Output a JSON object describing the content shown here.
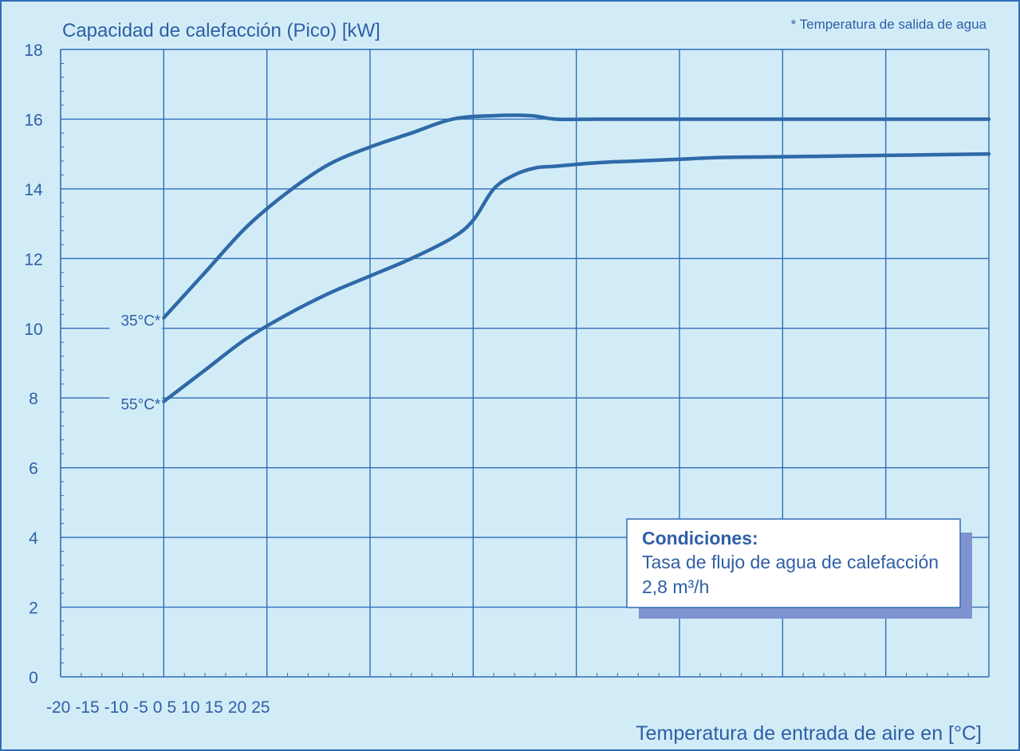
{
  "chart_data": {
    "type": "line",
    "ylabel": "Capacidad de calefacción (Pico) [kW]",
    "xlabel": "Temperatura de entrada de aire en [°C]",
    "note": "* Temperatura de salida de agua",
    "ylim": [
      0,
      18
    ],
    "xlim": [
      -20,
      25
    ],
    "y_ticks": [
      0,
      2,
      4,
      6,
      8,
      10,
      12,
      14,
      16,
      18
    ],
    "x_ticks": [
      -20,
      -15,
      -10,
      -5,
      0,
      5,
      10,
      15,
      20,
      25
    ],
    "x_tick_labels": [
      "-20",
      "-15",
      "-10",
      "-5",
      "0",
      "5",
      "10",
      "15",
      "20",
      "25"
    ],
    "grid": true,
    "series": [
      {
        "name": "35°C*",
        "x": [
          -15,
          -13,
          -11,
          -9,
          -7,
          -5,
          -3,
          -1,
          1,
          2.8,
          4,
          6,
          8,
          10,
          12,
          15,
          20,
          25
        ],
        "y": [
          10.3,
          11.6,
          12.9,
          13.9,
          14.7,
          15.2,
          15.6,
          16.0,
          16.1,
          16.1,
          16.0,
          16.0,
          16.0,
          16.0,
          16.0,
          16.0,
          16.0,
          16.0
        ]
      },
      {
        "name": "55°C*",
        "x": [
          -15,
          -13,
          -11,
          -9,
          -7,
          -5,
          -3,
          -1,
          0,
          1,
          2,
          3,
          4,
          6,
          8,
          10,
          12,
          15,
          20,
          25
        ],
        "y": [
          7.9,
          8.8,
          9.7,
          10.4,
          11.0,
          11.5,
          12.0,
          12.6,
          13.1,
          14.0,
          14.4,
          14.6,
          14.65,
          14.75,
          14.8,
          14.85,
          14.9,
          14.92,
          14.96,
          15.0
        ]
      }
    ],
    "annotation": {
      "title": "Condiciones:",
      "line1": "Tasa de flujo de agua de calefacción",
      "line2": "2,8 m³/h",
      "placement": "bottom-right"
    },
    "line_color": "#2e6aa8",
    "grid_color": "#2f6db5",
    "background_color": "#d2ecf7"
  }
}
